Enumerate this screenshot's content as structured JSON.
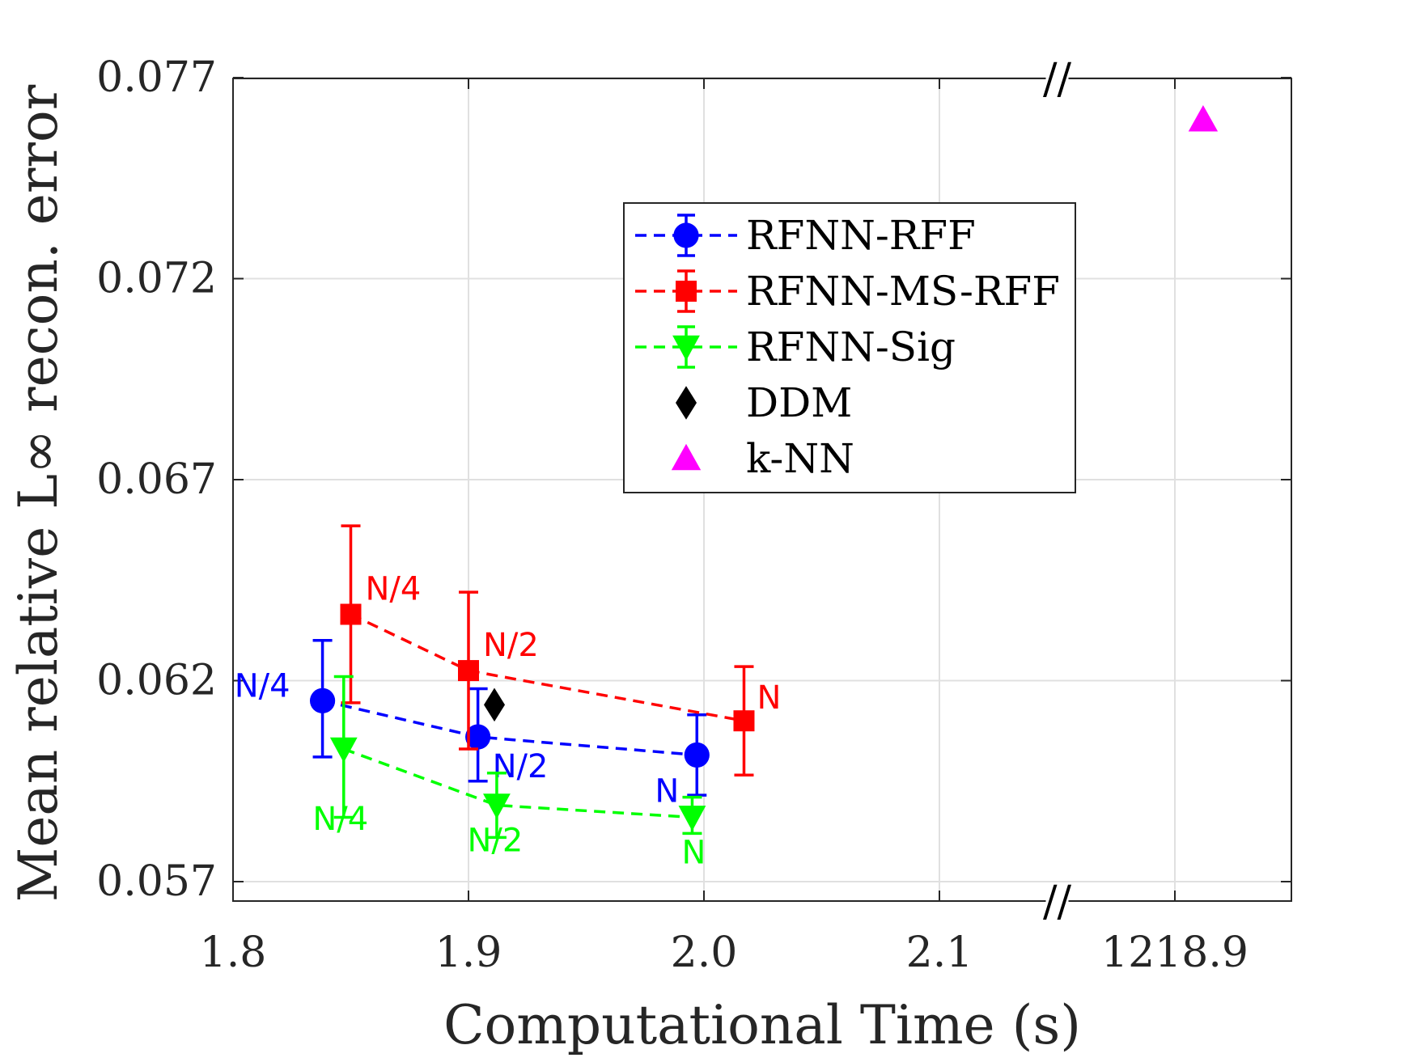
{
  "chart_data": {
    "type": "scatter",
    "xlabel": "Computational Time (s)",
    "ylabel": "Mean relative L∞ recon. error",
    "ylim": [
      0.0565,
      0.077
    ],
    "xlim": [
      1.8,
      2.25
    ],
    "y_ticks": [
      "0.057",
      "0.062",
      "0.067",
      "0.072",
      "0.077"
    ],
    "y_tick_values": [
      0.057,
      0.062,
      0.067,
      0.072,
      0.077
    ],
    "x_ticks": [
      "1.8",
      "1.9",
      "2.0",
      "2.1",
      "1218.9"
    ],
    "x_tick_values": [
      1.8,
      1.9,
      2.0,
      2.1,
      2.2
    ],
    "axis_break": {
      "after": "2.1",
      "before": "1218.9",
      "marker": "//"
    },
    "grid": true,
    "legend_position": "upper-center",
    "series": [
      {
        "name": "RFNN-RFF",
        "color": "#0000ff",
        "marker": "circle",
        "linestyle": "dashed",
        "points": [
          {
            "x": 1.838,
            "y": 0.0615,
            "err_low": 0.0601,
            "err_high": 0.063,
            "label": "N/4"
          },
          {
            "x": 1.904,
            "y": 0.0606,
            "err_low": 0.0595,
            "err_high": 0.0618,
            "label": "N/2"
          },
          {
            "x": 1.997,
            "y": 0.06015,
            "err_low": 0.05915,
            "err_high": 0.06115,
            "label": "N"
          }
        ]
      },
      {
        "name": "RFNN-MS-RFF",
        "color": "#ff0000",
        "marker": "square",
        "linestyle": "dashed",
        "points": [
          {
            "x": 1.85,
            "y": 0.06365,
            "err_low": 0.06145,
            "err_high": 0.06585,
            "label": "N/4"
          },
          {
            "x": 1.9,
            "y": 0.06225,
            "err_low": 0.0603,
            "err_high": 0.0642,
            "label": "N/2"
          },
          {
            "x": 2.017,
            "y": 0.061,
            "err_low": 0.05965,
            "err_high": 0.06235,
            "label": "N"
          }
        ]
      },
      {
        "name": "RFNN-Sig",
        "color": "#00ff00",
        "marker": "triangle-down",
        "linestyle": "dashed",
        "points": [
          {
            "x": 1.847,
            "y": 0.0603,
            "err_low": 0.0586,
            "err_high": 0.0621,
            "label": "N/4"
          },
          {
            "x": 1.912,
            "y": 0.0589,
            "err_low": 0.0581,
            "err_high": 0.0597,
            "label": "N/2"
          },
          {
            "x": 1.995,
            "y": 0.0586,
            "err_low": 0.0582,
            "err_high": 0.0591,
            "label": "N"
          }
        ]
      },
      {
        "name": "DDM",
        "color": "#000000",
        "marker": "diamond",
        "linestyle": "none",
        "points": [
          {
            "x": 1.911,
            "y": 0.0614
          }
        ]
      },
      {
        "name": "k-NN",
        "color": "#ff00ff",
        "marker": "triangle-up",
        "linestyle": "none",
        "points": [
          {
            "x": 1218.9,
            "plot_x": 2.212,
            "y": 0.07595
          }
        ]
      }
    ]
  }
}
